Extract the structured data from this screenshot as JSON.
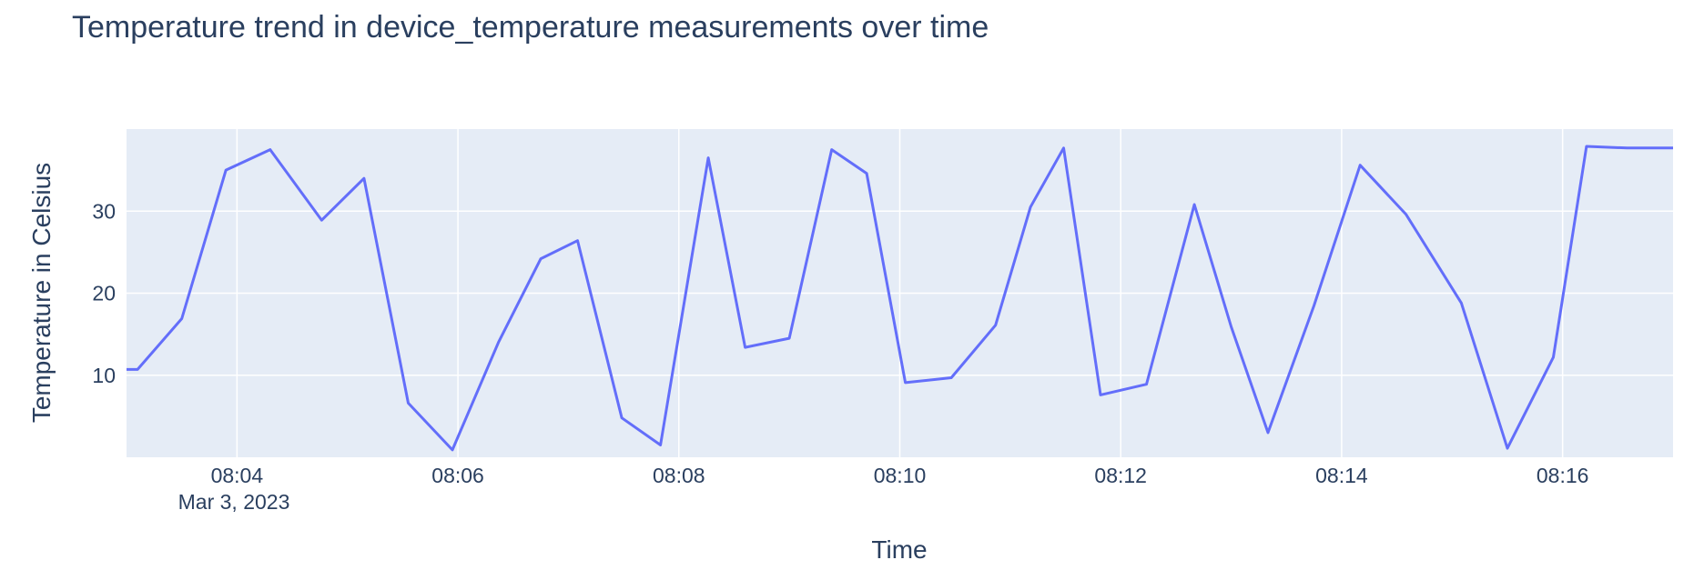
{
  "chart_data": {
    "type": "line",
    "title": "Temperature trend in device_temperature measurements over time",
    "xlabel": "Time",
    "ylabel": "Temperature in Celsius",
    "x_ticks": [
      "08:04",
      "08:06",
      "08:08",
      "08:10",
      "08:12",
      "08:14",
      "08:16"
    ],
    "x_subtick": "Mar 3, 2023",
    "y_ticks": [
      10,
      20,
      30
    ],
    "xlim": [
      "2023-03-03 08:03:00",
      "2023-03-03 08:17:00"
    ],
    "ylim": [
      0,
      40
    ],
    "grid": true,
    "legend": false,
    "line_color": "#636efa",
    "plot_bg": "#e5ecf6",
    "series": [
      {
        "x": [
          "2023-03-03 08:03:00",
          "2023-03-03 08:03:06",
          "2023-03-03 08:03:30",
          "2023-03-03 08:03:54",
          "2023-03-03 08:04:18",
          "2023-03-03 08:04:46",
          "2023-03-03 08:05:09",
          "2023-03-03 08:05:33",
          "2023-03-03 08:05:57",
          "2023-03-03 08:06:22",
          "2023-03-03 08:06:45",
          "2023-03-03 08:07:05",
          "2023-03-03 08:07:29",
          "2023-03-03 08:07:50",
          "2023-03-03 08:08:16",
          "2023-03-03 08:08:36",
          "2023-03-03 08:09:00",
          "2023-03-03 08:09:23",
          "2023-03-03 08:09:42",
          "2023-03-03 08:10:03",
          "2023-03-03 08:10:28",
          "2023-03-03 08:10:52",
          "2023-03-03 08:11:11",
          "2023-03-03 08:11:29",
          "2023-03-03 08:11:49",
          "2023-03-03 08:12:14",
          "2023-03-03 08:12:40",
          "2023-03-03 08:13:00",
          "2023-03-03 08:13:20",
          "2023-03-03 08:13:45",
          "2023-03-03 08:14:10",
          "2023-03-03 08:14:35",
          "2023-03-03 08:15:05",
          "2023-03-03 08:15:30",
          "2023-03-03 08:15:55",
          "2023-03-03 08:16:13",
          "2023-03-03 08:16:35",
          "2023-03-03 08:17:00"
        ],
        "y": [
          10.7,
          10.7,
          16.9,
          35.0,
          37.5,
          28.9,
          34.0,
          6.6,
          0.9,
          14.0,
          24.2,
          26.4,
          4.8,
          1.5,
          36.5,
          13.4,
          14.5,
          37.5,
          34.6,
          9.1,
          9.7,
          16.1,
          30.5,
          37.7,
          7.6,
          8.9,
          30.8,
          15.9,
          3.0,
          18.5,
          35.6,
          29.6,
          18.8,
          1.1,
          12.2,
          37.9,
          37.7,
          37.7
        ]
      }
    ]
  }
}
